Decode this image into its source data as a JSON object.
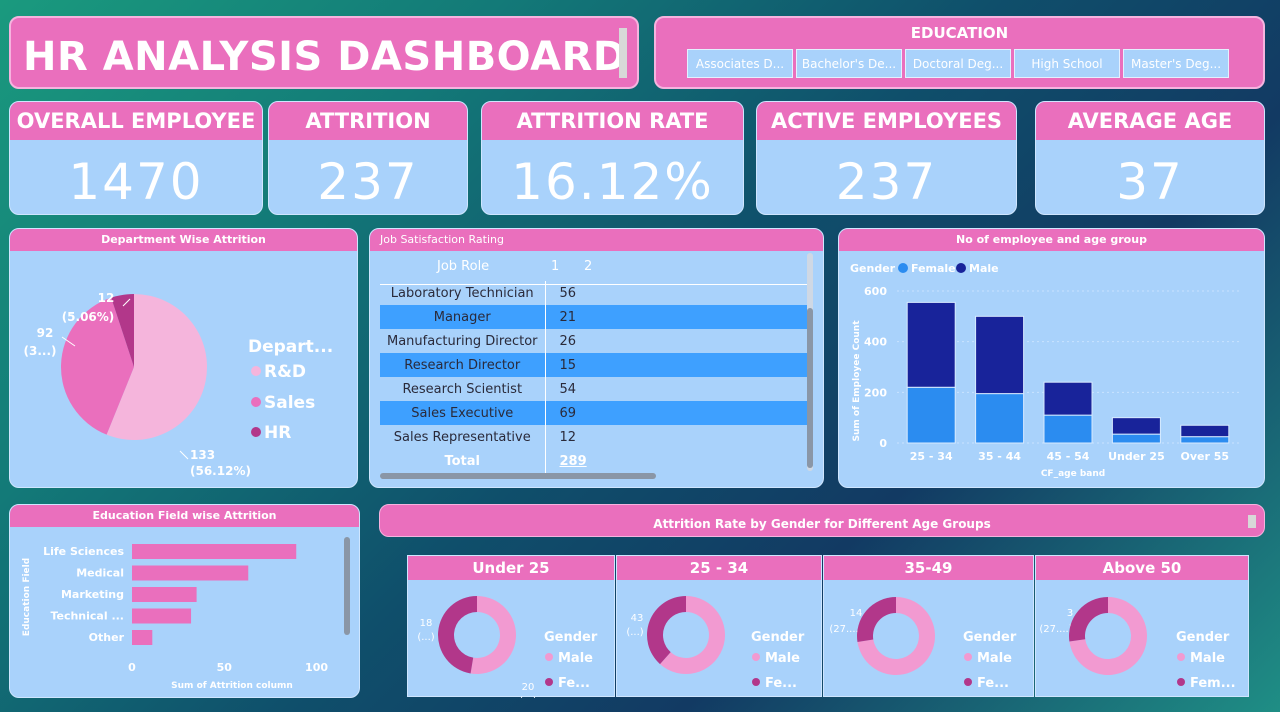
{
  "header": {
    "title": "HR ANALYSIS DASHBOARD"
  },
  "education_slicer": {
    "label": "EDUCATION",
    "options": [
      "Associates D...",
      "Bachelor's De...",
      "Doctoral Deg...",
      "High School",
      "Master's Deg..."
    ]
  },
  "kpis": [
    {
      "label": "OVERALL EMPLOYEE",
      "value": "1470"
    },
    {
      "label": "ATTRITION",
      "value": "237"
    },
    {
      "label": "ATTRITION RATE",
      "value": "16.12%"
    },
    {
      "label": "ACTIVE EMPLOYEES",
      "value": "237"
    },
    {
      "label": "AVERAGE AGE",
      "value": "37"
    }
  ],
  "department_chart": {
    "title": "Department Wise Attrition",
    "legend_title": "Depart...",
    "legend": [
      "R&D",
      "Sales",
      "HR"
    ],
    "labels": {
      "hr": [
        "12",
        "(5.06%)"
      ],
      "sales": [
        "92",
        "(3...)"
      ],
      "rd": [
        "133",
        "(56.12%)"
      ]
    },
    "colors": {
      "rd": "#f5b5dc",
      "sales": "#ea6fbd",
      "hr": "#b2378a"
    }
  },
  "job_satisfaction": {
    "title": "Job Satisfaction Rating",
    "headers": [
      "Job Role",
      "1",
      "2"
    ],
    "rows": [
      {
        "role": "Laboratory Technician",
        "value": "56"
      },
      {
        "role": "Manager",
        "value": "21"
      },
      {
        "role": "Manufacturing Director",
        "value": "26"
      },
      {
        "role": "Research Director",
        "value": "15"
      },
      {
        "role": "Research Scientist",
        "value": "54"
      },
      {
        "role": "Sales Executive",
        "value": "69"
      },
      {
        "role": "Sales Representative",
        "value": "12"
      }
    ],
    "total_label": "Total",
    "total_value": "289"
  },
  "age_chart": {
    "title": "No of employee and age group",
    "legend_title": "Gender",
    "legend_female": "Female",
    "legend_male": "Male",
    "ylabel": "Sum of Employee Count",
    "xlabel": "CF_age band",
    "y_ticks": [
      "0",
      "200",
      "400",
      "600"
    ]
  },
  "education_field_chart": {
    "title": "Education Field wise Attrition",
    "ylabel": "Education Field",
    "xlabel": "Sum of Attrition column",
    "x_ticks": [
      "0",
      "50",
      "100"
    ]
  },
  "gender_section": {
    "title": "Attrition Rate by Gender for Different Age Groups",
    "legend_title": "Gender",
    "cards": [
      {
        "title": "Under 25",
        "top_label": [
          "18",
          "(...)"
        ],
        "bottom_label": [
          "20",
          "(...)"
        ],
        "legend": [
          "Male",
          "Fe..."
        ]
      },
      {
        "title": "25 - 34",
        "top_label": [
          "43",
          "(...)"
        ],
        "bottom_label": [
          "",
          ""
        ],
        "legend": [
          "Male",
          "Fe..."
        ]
      },
      {
        "title": "35-49",
        "top_label": [
          "14",
          "(27....)"
        ],
        "bottom_label": [
          "",
          ""
        ],
        "legend": [
          "Male",
          "Fe..."
        ]
      },
      {
        "title": "Above 50",
        "top_label": [
          "3",
          "(27....)"
        ],
        "bottom_label": [
          "",
          ""
        ],
        "legend": [
          "Male",
          "Fem..."
        ]
      }
    ]
  },
  "chart_data": [
    {
      "type": "pie",
      "title": "Department Wise Attrition",
      "categories": [
        "R&D",
        "Sales",
        "HR"
      ],
      "values": [
        133,
        92,
        12
      ]
    },
    {
      "type": "bar",
      "title": "No of employee and age group",
      "categories": [
        "25 - 34",
        "35 - 44",
        "45 - 54",
        "Under 25",
        "Over 55"
      ],
      "series": [
        {
          "name": "Female",
          "values": [
            220,
            195,
            110,
            35,
            25
          ]
        },
        {
          "name": "Male",
          "values": [
            335,
            305,
            130,
            65,
            45
          ]
        }
      ],
      "ylim": [
        0,
        600
      ],
      "xlabel": "CF_age band",
      "ylabel": "Sum of Employee Count",
      "colors": {
        "Female": "#2b8cf0",
        "Male": "#18239a"
      }
    },
    {
      "type": "bar",
      "title": "Education Field wise Attrition",
      "categories": [
        "Life Sciences",
        "Medical",
        "Marketing",
        "Technical ...",
        "Other"
      ],
      "values": [
        89,
        63,
        35,
        32,
        11
      ],
      "xlim": [
        0,
        110
      ],
      "xlabel": "Sum of Attrition column",
      "ylabel": "Education Field"
    },
    {
      "type": "pie",
      "title": "Under 25",
      "categories": [
        "Male",
        "Female"
      ],
      "values": [
        20,
        18
      ]
    },
    {
      "type": "pie",
      "title": "25 - 34",
      "categories": [
        "Male",
        "Female"
      ],
      "values": [
        69,
        43
      ]
    },
    {
      "type": "pie",
      "title": "35-49",
      "categories": [
        "Male",
        "Female"
      ],
      "values": [
        37,
        14
      ]
    },
    {
      "type": "pie",
      "title": "Above 50",
      "categories": [
        "Male",
        "Female"
      ],
      "values": [
        8,
        3
      ]
    }
  ]
}
